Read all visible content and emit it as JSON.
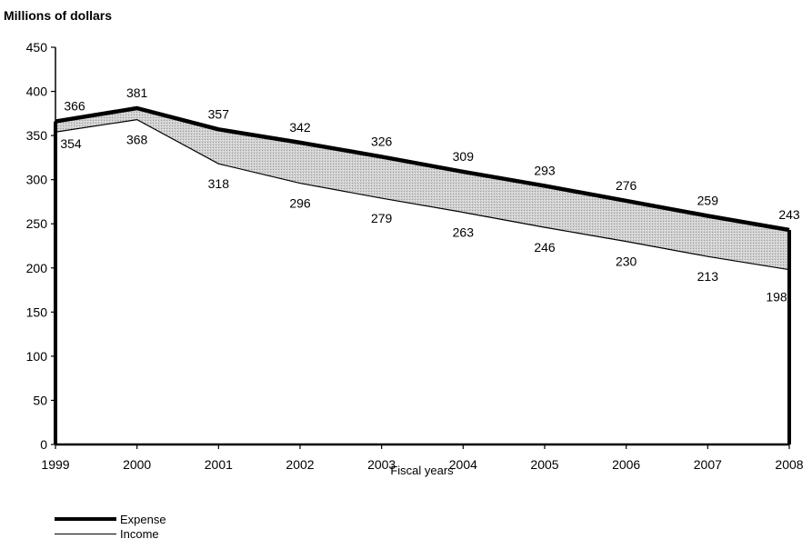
{
  "chart_data": {
    "type": "line",
    "ylabel": "Millions of dollars",
    "xlabel": "Fiscal years",
    "x": [
      "1999",
      "2000",
      "2001",
      "2002",
      "2003",
      "2004",
      "2005",
      "2006",
      "2007",
      "2008"
    ],
    "ylim": [
      0,
      450
    ],
    "yticks": [
      0,
      50,
      100,
      150,
      200,
      250,
      300,
      350,
      400,
      450
    ],
    "series": [
      {
        "name": "Expense",
        "values": [
          366,
          381,
          357,
          342,
          326,
          309,
          293,
          276,
          259,
          243
        ],
        "line": "thick",
        "color": "#000000"
      },
      {
        "name": "Income",
        "values": [
          354,
          368,
          318,
          296,
          279,
          263,
          246,
          230,
          213,
          198
        ],
        "line": "thin",
        "color": "#000000"
      }
    ],
    "shaded_gap": {
      "fill": "#c6c6c6"
    },
    "grid": false,
    "legend_position": "bottom-left"
  }
}
